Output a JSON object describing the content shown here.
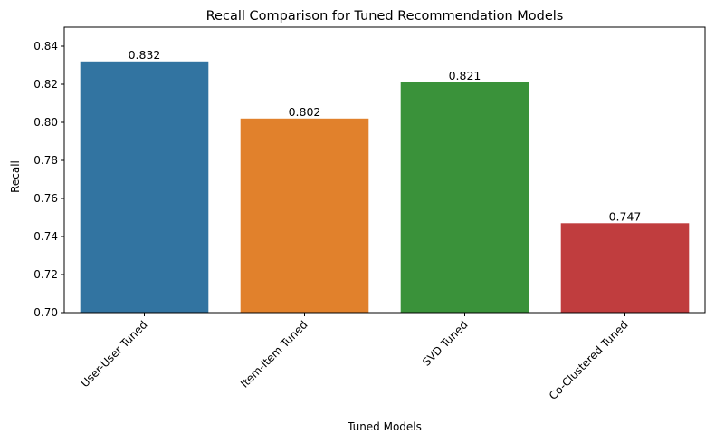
{
  "chart_data": {
    "type": "bar",
    "title": "Recall Comparison for Tuned Recommendation Models",
    "xlabel": "Tuned Models",
    "ylabel": "Recall",
    "categories": [
      "User-User Tuned",
      "Item-Item Tuned",
      "SVD Tuned",
      "Co-Clustered Tuned"
    ],
    "values": [
      0.832,
      0.802,
      0.821,
      0.747
    ],
    "value_labels": [
      "0.832",
      "0.802",
      "0.821",
      "0.747"
    ],
    "colors": [
      "#3274a1",
      "#e1812c",
      "#3a923a",
      "#c03d3e"
    ],
    "ylim": [
      0.7,
      0.85
    ],
    "yticks": [
      0.7,
      0.72,
      0.74,
      0.76,
      0.78,
      0.8,
      0.82,
      0.84
    ],
    "ytick_labels": [
      "0.70",
      "0.72",
      "0.74",
      "0.76",
      "0.78",
      "0.80",
      "0.82",
      "0.84"
    ],
    "grid": false,
    "legend": "none"
  }
}
